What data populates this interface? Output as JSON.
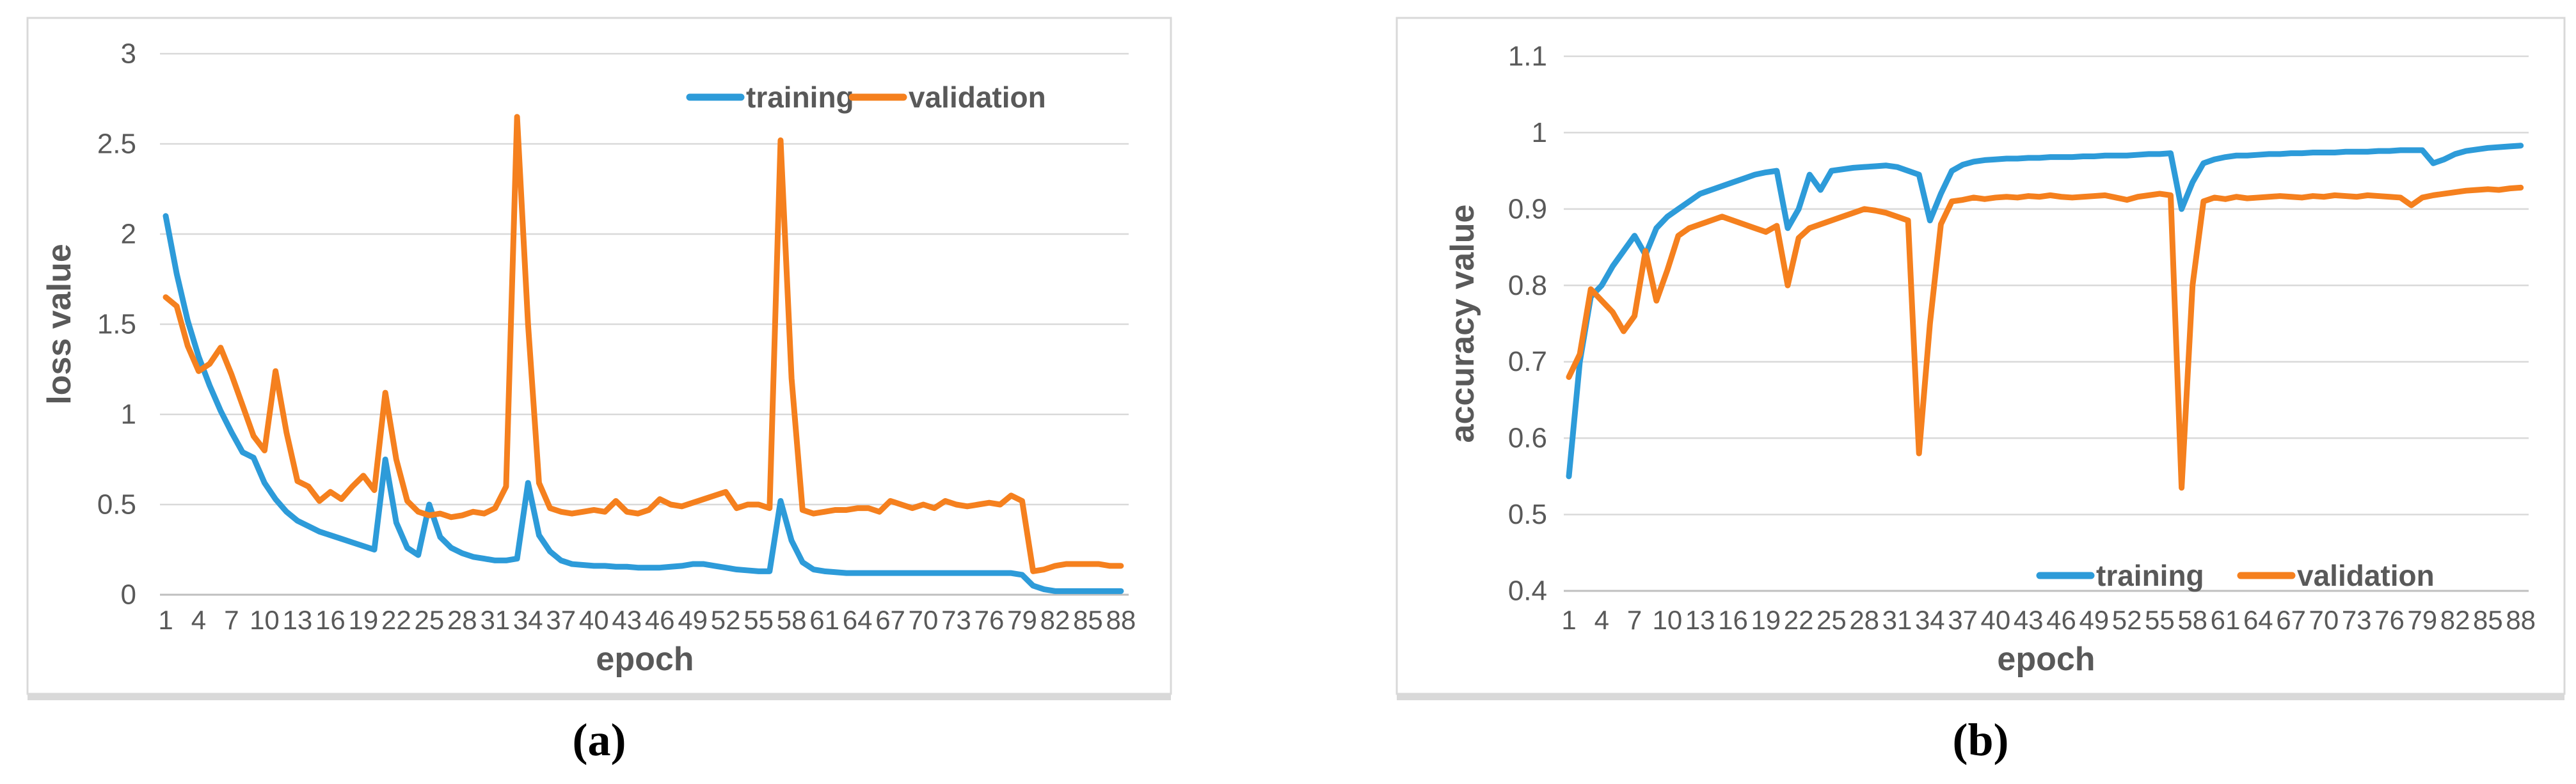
{
  "figure": {
    "captions": {
      "a": "(a)",
      "b": "(b)"
    },
    "colors": {
      "training": "#2D9BD9",
      "validation": "#F5801E",
      "grid": "#D9D9D9",
      "axis_line": "#BFBFBF",
      "text": "#595959",
      "frame": "#D9D9D9",
      "caption_text": "#000000"
    }
  },
  "chart_data": [
    {
      "id": "a",
      "type": "line",
      "title": "",
      "xlabel": "epoch",
      "ylabel": "loss value",
      "x_start": 1,
      "x_step": 1,
      "x_end": 88,
      "xticks": [
        1,
        4,
        7,
        10,
        13,
        16,
        19,
        22,
        25,
        28,
        31,
        34,
        37,
        40,
        43,
        46,
        49,
        52,
        55,
        58,
        61,
        64,
        67,
        70,
        73,
        76,
        79,
        82,
        85,
        88
      ],
      "ylim": [
        0,
        3
      ],
      "yticks": [
        0,
        0.5,
        1,
        1.5,
        2,
        2.5,
        3
      ],
      "grid": "horizontal",
      "legend_position": "top-center",
      "series": [
        {
          "name": "training",
          "color": "#2D9BD9",
          "values": [
            2.1,
            1.78,
            1.52,
            1.32,
            1.16,
            1.02,
            0.9,
            0.79,
            0.76,
            0.62,
            0.53,
            0.46,
            0.41,
            0.38,
            0.35,
            0.33,
            0.31,
            0.29,
            0.27,
            0.25,
            0.75,
            0.4,
            0.26,
            0.22,
            0.5,
            0.32,
            0.26,
            0.23,
            0.21,
            0.2,
            0.19,
            0.19,
            0.2,
            0.62,
            0.33,
            0.24,
            0.19,
            0.17,
            0.165,
            0.16,
            0.16,
            0.155,
            0.155,
            0.15,
            0.15,
            0.15,
            0.155,
            0.16,
            0.17,
            0.17,
            0.16,
            0.15,
            0.14,
            0.135,
            0.13,
            0.13,
            0.52,
            0.3,
            0.18,
            0.14,
            0.13,
            0.125,
            0.12,
            0.12,
            0.12,
            0.12,
            0.12,
            0.12,
            0.12,
            0.12,
            0.12,
            0.12,
            0.12,
            0.12,
            0.12,
            0.12,
            0.12,
            0.12,
            0.11,
            0.05,
            0.03,
            0.02,
            0.02,
            0.02,
            0.02,
            0.02,
            0.02,
            0.02
          ]
        },
        {
          "name": "validation",
          "color": "#F5801E",
          "values": [
            1.65,
            1.6,
            1.38,
            1.24,
            1.28,
            1.37,
            1.22,
            1.05,
            0.88,
            0.8,
            1.24,
            0.9,
            0.63,
            0.6,
            0.52,
            0.57,
            0.53,
            0.6,
            0.66,
            0.58,
            1.12,
            0.75,
            0.52,
            0.46,
            0.44,
            0.45,
            0.43,
            0.44,
            0.46,
            0.45,
            0.48,
            0.6,
            2.65,
            1.5,
            0.62,
            0.48,
            0.46,
            0.45,
            0.46,
            0.47,
            0.46,
            0.52,
            0.46,
            0.45,
            0.47,
            0.53,
            0.5,
            0.49,
            0.51,
            0.53,
            0.55,
            0.57,
            0.48,
            0.5,
            0.5,
            0.48,
            2.52,
            1.2,
            0.47,
            0.45,
            0.46,
            0.47,
            0.47,
            0.48,
            0.48,
            0.46,
            0.52,
            0.5,
            0.48,
            0.5,
            0.48,
            0.52,
            0.5,
            0.49,
            0.5,
            0.51,
            0.5,
            0.55,
            0.52,
            0.13,
            0.14,
            0.16,
            0.17,
            0.17,
            0.17,
            0.17,
            0.16,
            0.16
          ]
        }
      ]
    },
    {
      "id": "b",
      "type": "line",
      "title": "",
      "xlabel": "epoch",
      "ylabel": "accuracy value",
      "x_start": 1,
      "x_step": 1,
      "x_end": 88,
      "xticks": [
        1,
        4,
        7,
        10,
        13,
        16,
        19,
        22,
        25,
        28,
        31,
        34,
        37,
        40,
        43,
        46,
        49,
        52,
        55,
        58,
        61,
        64,
        67,
        70,
        73,
        76,
        79,
        82,
        85,
        88
      ],
      "ylim": [
        0.4,
        1.1
      ],
      "yticks": [
        0.4,
        0.5,
        0.6,
        0.7,
        0.8,
        0.9,
        1,
        1.1
      ],
      "grid": "horizontal",
      "legend_position": "bottom-right-inside",
      "series": [
        {
          "name": "training",
          "color": "#2D9BD9",
          "values": [
            0.55,
            0.7,
            0.785,
            0.8,
            0.825,
            0.845,
            0.865,
            0.84,
            0.875,
            0.89,
            0.9,
            0.91,
            0.92,
            0.925,
            0.93,
            0.935,
            0.94,
            0.945,
            0.948,
            0.95,
            0.875,
            0.9,
            0.945,
            0.925,
            0.95,
            0.952,
            0.954,
            0.955,
            0.956,
            0.957,
            0.955,
            0.95,
            0.945,
            0.885,
            0.92,
            0.95,
            0.958,
            0.962,
            0.964,
            0.965,
            0.966,
            0.966,
            0.967,
            0.967,
            0.968,
            0.968,
            0.968,
            0.969,
            0.969,
            0.97,
            0.97,
            0.97,
            0.971,
            0.972,
            0.972,
            0.973,
            0.9,
            0.935,
            0.96,
            0.965,
            0.968,
            0.97,
            0.97,
            0.971,
            0.972,
            0.972,
            0.973,
            0.973,
            0.974,
            0.974,
            0.974,
            0.975,
            0.975,
            0.975,
            0.976,
            0.976,
            0.977,
            0.977,
            0.977,
            0.96,
            0.965,
            0.972,
            0.976,
            0.978,
            0.98,
            0.981,
            0.982,
            0.983
          ]
        },
        {
          "name": "validation",
          "color": "#F5801E",
          "values": [
            0.68,
            0.71,
            0.795,
            0.78,
            0.765,
            0.74,
            0.76,
            0.845,
            0.78,
            0.82,
            0.865,
            0.875,
            0.88,
            0.885,
            0.89,
            0.885,
            0.88,
            0.875,
            0.87,
            0.878,
            0.8,
            0.862,
            0.875,
            0.88,
            0.885,
            0.89,
            0.895,
            0.9,
            0.898,
            0.895,
            0.89,
            0.885,
            0.58,
            0.75,
            0.88,
            0.91,
            0.912,
            0.915,
            0.913,
            0.915,
            0.916,
            0.915,
            0.917,
            0.916,
            0.918,
            0.916,
            0.915,
            0.916,
            0.917,
            0.918,
            0.915,
            0.912,
            0.916,
            0.918,
            0.92,
            0.918,
            0.535,
            0.8,
            0.91,
            0.915,
            0.913,
            0.916,
            0.914,
            0.915,
            0.916,
            0.917,
            0.916,
            0.915,
            0.917,
            0.916,
            0.918,
            0.917,
            0.916,
            0.918,
            0.917,
            0.916,
            0.915,
            0.905,
            0.915,
            0.918,
            0.92,
            0.922,
            0.924,
            0.925,
            0.926,
            0.925,
            0.927,
            0.928
          ]
        }
      ]
    }
  ]
}
